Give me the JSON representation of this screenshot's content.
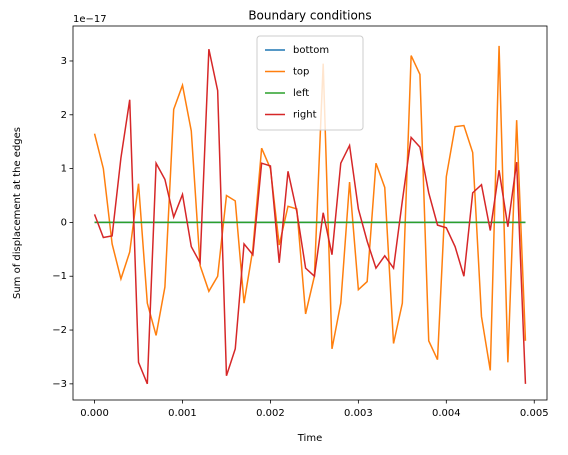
{
  "chart_data": {
    "type": "line",
    "title": "Boundary conditions",
    "xlabel": "Time",
    "ylabel": "Sum of displacement at the edges",
    "offset_label": "1e−17",
    "x": [
      0,
      0.0001,
      0.0002,
      0.0003,
      0.0004,
      0.0005,
      0.0006,
      0.0007,
      0.0008,
      0.0009,
      0.001,
      0.0011,
      0.0012,
      0.0013,
      0.0014,
      0.0015,
      0.0016,
      0.0017,
      0.0018,
      0.0019,
      0.002,
      0.0021,
      0.0022,
      0.0023,
      0.0024,
      0.0025,
      0.0026,
      0.0027,
      0.0028,
      0.0029,
      0.003,
      0.0031,
      0.0032,
      0.0033,
      0.0034,
      0.0035,
      0.0036,
      0.0037,
      0.0038,
      0.0039,
      0.004,
      0.0041,
      0.0042,
      0.0043,
      0.0044,
      0.0045,
      0.0046,
      0.0047,
      0.0048,
      0.0049
    ],
    "series": [
      {
        "name": "bottom",
        "color": "#1f77b4",
        "values": [
          0,
          0,
          0,
          0,
          0,
          0,
          0,
          0,
          0,
          0,
          0,
          0,
          0,
          0,
          0,
          0,
          0,
          0,
          0,
          0,
          0,
          0,
          0,
          0,
          0,
          0,
          0,
          0,
          0,
          0,
          0,
          0,
          0,
          0,
          0,
          0,
          0,
          0,
          0,
          0,
          0,
          0,
          0,
          0,
          0,
          0,
          0,
          0,
          0,
          0
        ]
      },
      {
        "name": "top",
        "color": "#ff7f0e",
        "values": [
          1.65,
          1.0,
          -0.4,
          -1.05,
          -0.55,
          0.72,
          -1.5,
          -2.1,
          -1.2,
          2.1,
          2.55,
          1.7,
          -0.8,
          -1.28,
          -1.0,
          0.5,
          0.4,
          -1.5,
          -0.5,
          1.38,
          1.0,
          -0.42,
          0.3,
          0.25,
          -1.7,
          -1.0,
          2.95,
          -2.35,
          -1.5,
          0.75,
          -1.25,
          -1.1,
          1.1,
          0.65,
          -2.25,
          -1.5,
          3.1,
          2.75,
          -2.2,
          -2.55,
          0.85,
          1.78,
          1.8,
          1.3,
          -1.75,
          -2.75,
          3.28,
          -2.6,
          1.9,
          -2.2
        ]
      },
      {
        "name": "left",
        "color": "#2ca02c",
        "values": [
          0,
          0,
          0,
          0,
          0,
          0,
          0,
          0,
          0,
          0,
          0,
          0,
          0,
          0,
          0,
          0,
          0,
          0,
          0,
          0,
          0,
          0,
          0,
          0,
          0,
          0,
          0,
          0,
          0,
          0,
          0,
          0,
          0,
          0,
          0,
          0,
          0,
          0,
          0,
          0,
          0,
          0,
          0,
          0,
          0,
          0,
          0,
          0,
          0,
          0
        ]
      },
      {
        "name": "right",
        "color": "#d62728",
        "values": [
          0.15,
          -0.28,
          -0.25,
          1.2,
          2.28,
          -2.6,
          -3.0,
          1.1,
          0.8,
          0.1,
          0.52,
          -0.45,
          -0.75,
          3.22,
          2.45,
          -2.85,
          -2.35,
          -0.4,
          -0.6,
          1.1,
          1.05,
          -0.75,
          0.95,
          0.2,
          -0.85,
          -1.0,
          0.18,
          -0.6,
          1.1,
          1.43,
          0.25,
          -0.35,
          -0.85,
          -0.62,
          -0.85,
          0.4,
          1.58,
          1.4,
          0.55,
          -0.05,
          -0.1,
          -0.45,
          -1.0,
          0.55,
          0.7,
          -0.15,
          0.97,
          -0.08,
          1.12,
          -3.0
        ]
      }
    ],
    "xlim": [
      -0.000245,
      0.005145
    ],
    "xticks": [
      {
        "value": 0,
        "label": "0.000"
      },
      {
        "value": 0.001,
        "label": "0.001"
      },
      {
        "value": 0.002,
        "label": "0.002"
      },
      {
        "value": 0.003,
        "label": "0.003"
      },
      {
        "value": 0.004,
        "label": "0.004"
      },
      {
        "value": 0.005,
        "label": "0.005"
      }
    ],
    "ylim": [
      -3.3,
      3.65
    ],
    "yticks": [
      {
        "value": -3,
        "label": "−3"
      },
      {
        "value": -2,
        "label": "−2"
      },
      {
        "value": -1,
        "label": "−1"
      },
      0,
      1,
      2,
      3
    ],
    "legend": "upper center",
    "grid": false
  }
}
